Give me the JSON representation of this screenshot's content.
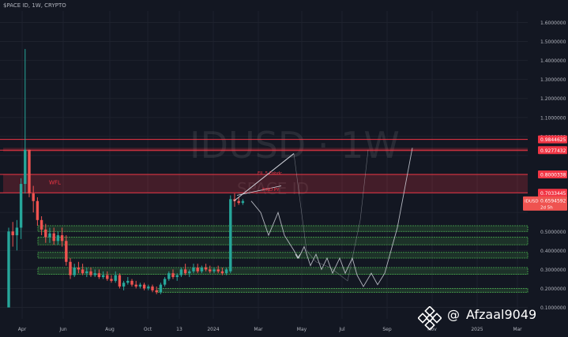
{
  "header": {
    "title": "$PACE ID, 1W, CRYPTO"
  },
  "watermark": {
    "symbol": "IDUSD",
    "interval": "1W",
    "subtitle": "SPACE ID"
  },
  "overlay": {
    "at_sign": "@",
    "handle": "Afzaal9049",
    "logo_icon": "binance-logo-icon"
  },
  "annotations": {
    "wfl": "WFL",
    "fib_label_1": "FIL 5 Fobdc",
    "fib_label_2": "FIND PY"
  },
  "last_price": {
    "label": "IDUSD",
    "value": "0.6594592",
    "countdown": "2d 5h"
  },
  "colors": {
    "background": "#131722",
    "up": "#26a69a",
    "down": "#ef5350",
    "resistance": "#f23645",
    "support": "#4caf50",
    "projection": "#d1d4dc"
  },
  "chart_data": {
    "type": "candlestick",
    "scale": "linear",
    "ylim": [
      0.04,
      1.66
    ],
    "yticks": [
      "1.6000000",
      "1.5000000",
      "1.4000000",
      "1.3000000",
      "1.2000000",
      "1.1000000",
      "1.0000000",
      "0.9000000",
      "0.8000000",
      "0.7000000",
      "0.6000000",
      "0.5000000",
      "0.4000000",
      "0.3000000",
      "0.2000000",
      "0.1000000"
    ],
    "xticks": [
      "Apr",
      "Jun",
      "Aug",
      "Oct",
      "13",
      "2024",
      "Mar",
      "May",
      "Jul",
      "Sep",
      "Nov",
      "2025",
      "Mar"
    ],
    "grid": true,
    "candles": [
      {
        "o": 0.1,
        "h": 0.52,
        "l": 0.1,
        "c": 0.5
      },
      {
        "o": 0.5,
        "h": 0.55,
        "l": 0.42,
        "c": 0.48
      },
      {
        "o": 0.48,
        "h": 0.56,
        "l": 0.4,
        "c": 0.52
      },
      {
        "o": 0.52,
        "h": 0.78,
        "l": 0.46,
        "c": 0.75
      },
      {
        "o": 0.75,
        "h": 1.46,
        "l": 0.7,
        "c": 0.93
      },
      {
        "o": 0.93,
        "h": 0.93,
        "l": 0.68,
        "c": 0.7
      },
      {
        "o": 0.7,
        "h": 0.74,
        "l": 0.6,
        "c": 0.66
      },
      {
        "o": 0.66,
        "h": 0.68,
        "l": 0.53,
        "c": 0.56
      },
      {
        "o": 0.56,
        "h": 0.58,
        "l": 0.48,
        "c": 0.51
      },
      {
        "o": 0.51,
        "h": 0.54,
        "l": 0.44,
        "c": 0.47
      },
      {
        "o": 0.47,
        "h": 0.52,
        "l": 0.44,
        "c": 0.49
      },
      {
        "o": 0.49,
        "h": 0.52,
        "l": 0.43,
        "c": 0.45
      },
      {
        "o": 0.45,
        "h": 0.5,
        "l": 0.43,
        "c": 0.48
      },
      {
        "o": 0.48,
        "h": 0.52,
        "l": 0.42,
        "c": 0.45
      },
      {
        "o": 0.45,
        "h": 0.48,
        "l": 0.32,
        "c": 0.34
      },
      {
        "o": 0.34,
        "h": 0.36,
        "l": 0.25,
        "c": 0.27
      },
      {
        "o": 0.27,
        "h": 0.33,
        "l": 0.26,
        "c": 0.31
      },
      {
        "o": 0.31,
        "h": 0.34,
        "l": 0.28,
        "c": 0.3
      },
      {
        "o": 0.3,
        "h": 0.33,
        "l": 0.27,
        "c": 0.28
      },
      {
        "o": 0.28,
        "h": 0.31,
        "l": 0.26,
        "c": 0.29
      },
      {
        "o": 0.29,
        "h": 0.31,
        "l": 0.26,
        "c": 0.27
      },
      {
        "o": 0.27,
        "h": 0.3,
        "l": 0.26,
        "c": 0.28
      },
      {
        "o": 0.28,
        "h": 0.3,
        "l": 0.25,
        "c": 0.26
      },
      {
        "o": 0.26,
        "h": 0.29,
        "l": 0.25,
        "c": 0.27
      },
      {
        "o": 0.27,
        "h": 0.29,
        "l": 0.24,
        "c": 0.25
      },
      {
        "o": 0.25,
        "h": 0.27,
        "l": 0.23,
        "c": 0.24
      },
      {
        "o": 0.24,
        "h": 0.29,
        "l": 0.23,
        "c": 0.27
      },
      {
        "o": 0.27,
        "h": 0.28,
        "l": 0.2,
        "c": 0.21
      },
      {
        "o": 0.21,
        "h": 0.24,
        "l": 0.19,
        "c": 0.23
      },
      {
        "o": 0.23,
        "h": 0.26,
        "l": 0.22,
        "c": 0.24
      },
      {
        "o": 0.24,
        "h": 0.25,
        "l": 0.21,
        "c": 0.22
      },
      {
        "o": 0.22,
        "h": 0.24,
        "l": 0.2,
        "c": 0.21
      },
      {
        "o": 0.21,
        "h": 0.23,
        "l": 0.2,
        "c": 0.22
      },
      {
        "o": 0.22,
        "h": 0.23,
        "l": 0.19,
        "c": 0.2
      },
      {
        "o": 0.2,
        "h": 0.22,
        "l": 0.19,
        "c": 0.21
      },
      {
        "o": 0.21,
        "h": 0.22,
        "l": 0.18,
        "c": 0.19
      },
      {
        "o": 0.19,
        "h": 0.21,
        "l": 0.17,
        "c": 0.18
      },
      {
        "o": 0.18,
        "h": 0.23,
        "l": 0.17,
        "c": 0.22
      },
      {
        "o": 0.22,
        "h": 0.26,
        "l": 0.21,
        "c": 0.25
      },
      {
        "o": 0.25,
        "h": 0.29,
        "l": 0.24,
        "c": 0.28
      },
      {
        "o": 0.28,
        "h": 0.3,
        "l": 0.25,
        "c": 0.26
      },
      {
        "o": 0.26,
        "h": 0.28,
        "l": 0.24,
        "c": 0.27
      },
      {
        "o": 0.27,
        "h": 0.31,
        "l": 0.26,
        "c": 0.3
      },
      {
        "o": 0.3,
        "h": 0.33,
        "l": 0.27,
        "c": 0.28
      },
      {
        "o": 0.28,
        "h": 0.3,
        "l": 0.26,
        "c": 0.29
      },
      {
        "o": 0.29,
        "h": 0.33,
        "l": 0.28,
        "c": 0.31
      },
      {
        "o": 0.31,
        "h": 0.33,
        "l": 0.28,
        "c": 0.29
      },
      {
        "o": 0.29,
        "h": 0.32,
        "l": 0.28,
        "c": 0.31
      },
      {
        "o": 0.31,
        "h": 0.33,
        "l": 0.29,
        "c": 0.3
      },
      {
        "o": 0.3,
        "h": 0.32,
        "l": 0.28,
        "c": 0.29
      },
      {
        "o": 0.29,
        "h": 0.31,
        "l": 0.28,
        "c": 0.3
      },
      {
        "o": 0.3,
        "h": 0.32,
        "l": 0.28,
        "c": 0.29
      },
      {
        "o": 0.29,
        "h": 0.31,
        "l": 0.27,
        "c": 0.28
      },
      {
        "o": 0.28,
        "h": 0.31,
        "l": 0.27,
        "c": 0.3
      },
      {
        "o": 0.29,
        "h": 0.69,
        "l": 0.28,
        "c": 0.67
      },
      {
        "o": 0.67,
        "h": 0.7,
        "l": 0.63,
        "c": 0.66
      },
      {
        "o": 0.66,
        "h": 0.68,
        "l": 0.64,
        "c": 0.65
      },
      {
        "o": 0.65,
        "h": 0.67,
        "l": 0.64,
        "c": 0.66
      }
    ],
    "resistance_zones": [
      {
        "from": 0.705,
        "to": 0.8
      },
      {
        "from": 0.92,
        "to": 0.94
      }
    ],
    "resistance_levels": [
      {
        "value": 0.9844625,
        "label": "0.9844625"
      },
      {
        "value": 0.9277432,
        "label": "0.9277432"
      },
      {
        "value": 0.8000338,
        "label": "0.8000338"
      },
      {
        "value": 0.7033445,
        "label": "0.7033445"
      }
    ],
    "support_zones": [
      {
        "from": 0.5,
        "to": 0.53
      },
      {
        "from": 0.43,
        "to": 0.47
      },
      {
        "from": 0.36,
        "to": 0.39
      },
      {
        "from": 0.275,
        "to": 0.31
      },
      {
        "from": 0.18,
        "to": 0.2
      }
    ]
  }
}
